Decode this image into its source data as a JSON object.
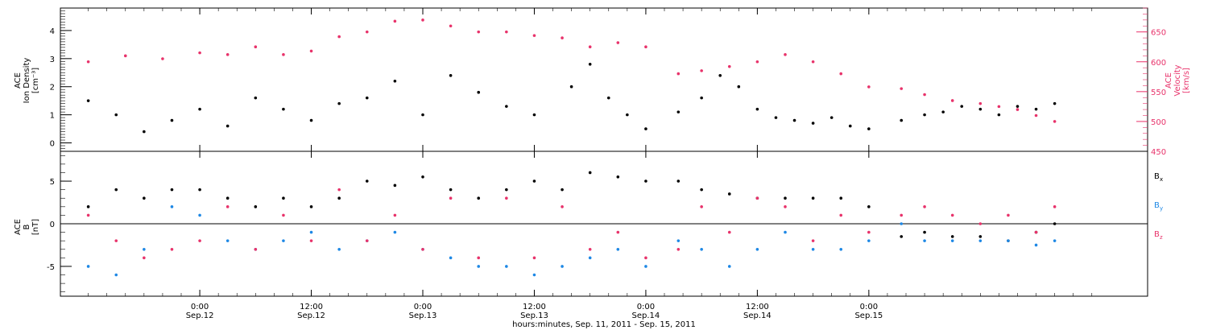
{
  "colors": {
    "black": "#000000",
    "pink": "#e8336b",
    "blue": "#1e88e5"
  },
  "chart_data": [
    {
      "type": "scatter",
      "panel": "ace-density-velocity",
      "ylabel": [
        "ACE",
        "Ion Density",
        "[cm⁻³]"
      ],
      "ylabel2": [
        "ACE",
        "Velocity",
        "[km/s]"
      ],
      "ylim": [
        -0.3,
        4.8
      ],
      "ylim2": [
        450,
        690
      ],
      "yticks": [
        "0",
        "1",
        "2",
        "3",
        "4"
      ],
      "yticks2": [
        "450",
        "500",
        "550",
        "600",
        "650"
      ],
      "grid": false,
      "data_gaps_hours": [
        [
          48,
          51.5
        ],
        [
          72,
          75.5
        ]
      ],
      "series": [
        {
          "name": "Ion Density",
          "axis": "left",
          "color": "black",
          "points": [
            [
              -12,
              1.5
            ],
            [
              -9,
              1.0
            ],
            [
              -6,
              0.4
            ],
            [
              -3,
              0.8
            ],
            [
              0,
              1.2
            ],
            [
              3,
              0.6
            ],
            [
              6,
              1.6
            ],
            [
              9,
              1.2
            ],
            [
              12,
              0.8
            ],
            [
              15,
              1.4
            ],
            [
              18,
              1.6
            ],
            [
              21,
              2.2
            ],
            [
              24,
              1.0
            ],
            [
              27,
              2.4
            ],
            [
              30,
              1.8
            ],
            [
              33,
              1.3
            ],
            [
              36,
              1.0
            ],
            [
              40,
              2.0
            ],
            [
              42,
              2.8
            ],
            [
              44,
              1.6
            ],
            [
              46,
              1.0
            ],
            [
              48,
              0.5
            ],
            [
              51.5,
              1.1
            ],
            [
              54,
              1.6
            ],
            [
              56,
              2.4
            ],
            [
              58,
              2.0
            ],
            [
              60,
              1.2
            ],
            [
              62,
              0.9
            ],
            [
              64,
              0.8
            ],
            [
              66,
              0.7
            ],
            [
              68,
              0.9
            ],
            [
              70,
              0.6
            ],
            [
              72,
              0.5
            ],
            [
              75.5,
              0.8
            ],
            [
              78,
              1.0
            ],
            [
              80,
              1.1
            ],
            [
              82,
              1.3
            ],
            [
              84,
              1.2
            ],
            [
              86,
              1.0
            ],
            [
              88,
              1.3
            ],
            [
              90,
              1.2
            ],
            [
              92,
              1.4
            ]
          ]
        },
        {
          "name": "Velocity",
          "axis": "right",
          "color": "pink",
          "points": [
            [
              -12,
              600
            ],
            [
              -8,
              610
            ],
            [
              -4,
              605
            ],
            [
              0,
              615
            ],
            [
              3,
              612
            ],
            [
              6,
              625
            ],
            [
              9,
              612
            ],
            [
              12,
              618
            ],
            [
              15,
              642
            ],
            [
              18,
              650
            ],
            [
              21,
              668
            ],
            [
              24,
              670
            ],
            [
              27,
              660
            ],
            [
              30,
              650
            ],
            [
              33,
              650
            ],
            [
              36,
              644
            ],
            [
              39,
              640
            ],
            [
              42,
              625
            ],
            [
              45,
              632
            ],
            [
              48,
              625
            ],
            [
              51.5,
              580
            ],
            [
              54,
              585
            ],
            [
              57,
              592
            ],
            [
              60,
              600
            ],
            [
              63,
              612
            ],
            [
              66,
              600
            ],
            [
              69,
              580
            ],
            [
              72,
              558
            ],
            [
              75.5,
              555
            ],
            [
              78,
              545
            ],
            [
              81,
              535
            ],
            [
              84,
              530
            ],
            [
              86,
              525
            ],
            [
              88,
              520
            ],
            [
              90,
              510
            ],
            [
              92,
              500
            ]
          ]
        }
      ]
    },
    {
      "type": "scatter",
      "panel": "ace-magnetic-field",
      "ylabel": [
        "ACE",
        "B",
        "[nT]"
      ],
      "ylim": [
        -8.5,
        8.5
      ],
      "yticks": [
        "-5",
        "0",
        "5"
      ],
      "grid": false,
      "zero_line": true,
      "series": [
        {
          "name": "Bx",
          "color": "black",
          "points": [
            [
              -12,
              2
            ],
            [
              -9,
              4
            ],
            [
              -6,
              3
            ],
            [
              -3,
              4
            ],
            [
              0,
              4
            ],
            [
              3,
              3
            ],
            [
              6,
              2
            ],
            [
              9,
              3
            ],
            [
              12,
              2
            ],
            [
              15,
              3
            ],
            [
              18,
              5
            ],
            [
              21,
              4.5
            ],
            [
              24,
              5.5
            ],
            [
              27,
              4
            ],
            [
              30,
              3
            ],
            [
              33,
              4
            ],
            [
              36,
              5
            ],
            [
              39,
              4
            ],
            [
              42,
              6
            ],
            [
              45,
              5.5
            ],
            [
              48,
              5
            ],
            [
              51.5,
              5
            ],
            [
              54,
              4
            ],
            [
              57,
              3.5
            ],
            [
              60,
              3
            ],
            [
              63,
              3
            ],
            [
              66,
              3
            ],
            [
              69,
              3
            ],
            [
              72,
              2
            ],
            [
              75.5,
              -1.5
            ],
            [
              78,
              -1
            ],
            [
              81,
              -1.5
            ],
            [
              84,
              -1.5
            ],
            [
              87,
              -2
            ],
            [
              90,
              -1
            ],
            [
              92,
              0
            ]
          ]
        },
        {
          "name": "By",
          "color": "blue",
          "points": [
            [
              -12,
              -5
            ],
            [
              -9,
              -6
            ],
            [
              -6,
              -3
            ],
            [
              -3,
              2
            ],
            [
              0,
              1
            ],
            [
              3,
              -2
            ],
            [
              6,
              -3
            ],
            [
              9,
              -2
            ],
            [
              12,
              -1
            ],
            [
              15,
              -3
            ],
            [
              18,
              -2
            ],
            [
              21,
              -1
            ],
            [
              24,
              -3
            ],
            [
              27,
              -4
            ],
            [
              30,
              -5
            ],
            [
              33,
              -5
            ],
            [
              36,
              -6
            ],
            [
              39,
              -5
            ],
            [
              42,
              -4
            ],
            [
              45,
              -3
            ],
            [
              48,
              -5
            ],
            [
              51.5,
              -2
            ],
            [
              54,
              -3
            ],
            [
              57,
              -5
            ],
            [
              60,
              -3
            ],
            [
              63,
              -1
            ],
            [
              66,
              -3
            ],
            [
              69,
              -3
            ],
            [
              72,
              -2
            ],
            [
              75.5,
              0
            ],
            [
              78,
              -2
            ],
            [
              81,
              -2
            ],
            [
              84,
              -2
            ],
            [
              87,
              -2
            ],
            [
              90,
              -2.5
            ],
            [
              92,
              -2
            ]
          ]
        },
        {
          "name": "Bz",
          "color": "pink",
          "points": [
            [
              -12,
              1
            ],
            [
              -9,
              -2
            ],
            [
              -6,
              -4
            ],
            [
              -3,
              -3
            ],
            [
              0,
              -2
            ],
            [
              3,
              2
            ],
            [
              6,
              -3
            ],
            [
              9,
              1
            ],
            [
              12,
              -2
            ],
            [
              15,
              4
            ],
            [
              18,
              -2
            ],
            [
              21,
              1
            ],
            [
              24,
              -3
            ],
            [
              27,
              3
            ],
            [
              30,
              -4
            ],
            [
              33,
              3
            ],
            [
              36,
              -4
            ],
            [
              39,
              2
            ],
            [
              42,
              -3
            ],
            [
              45,
              -1
            ],
            [
              48,
              -4
            ],
            [
              51.5,
              -3
            ],
            [
              54,
              2
            ],
            [
              57,
              -1
            ],
            [
              60,
              3
            ],
            [
              63,
              2
            ],
            [
              66,
              -2
            ],
            [
              69,
              1
            ],
            [
              72,
              -1
            ],
            [
              75.5,
              1
            ],
            [
              78,
              2
            ],
            [
              81,
              1
            ],
            [
              84,
              0
            ],
            [
              87,
              1
            ],
            [
              90,
              -1
            ],
            [
              92,
              2
            ]
          ]
        }
      ],
      "legend": [
        {
          "label": "B",
          "sub": "x",
          "color": "black"
        },
        {
          "label": "B",
          "sub": "y",
          "color": "blue"
        },
        {
          "label": "B",
          "sub": "z",
          "color": "pink"
        }
      ]
    }
  ],
  "x_axis": {
    "range_hours": [
      -15,
      102
    ],
    "ticks": [
      {
        "hours": 0,
        "time": "0:00",
        "date": "Sep.12"
      },
      {
        "hours": 12,
        "time": "12:00",
        "date": "Sep.12"
      },
      {
        "hours": 24,
        "time": "0:00",
        "date": "Sep.13"
      },
      {
        "hours": 36,
        "time": "12:00",
        "date": "Sep.13"
      },
      {
        "hours": 48,
        "time": "0:00",
        "date": "Sep.14"
      },
      {
        "hours": 60,
        "time": "12:00",
        "date": "Sep.14"
      },
      {
        "hours": 72,
        "time": "0:00",
        "date": "Sep.15"
      }
    ],
    "label": "hours:minutes, Sep. 11, 2011 - Sep. 15, 2011"
  }
}
